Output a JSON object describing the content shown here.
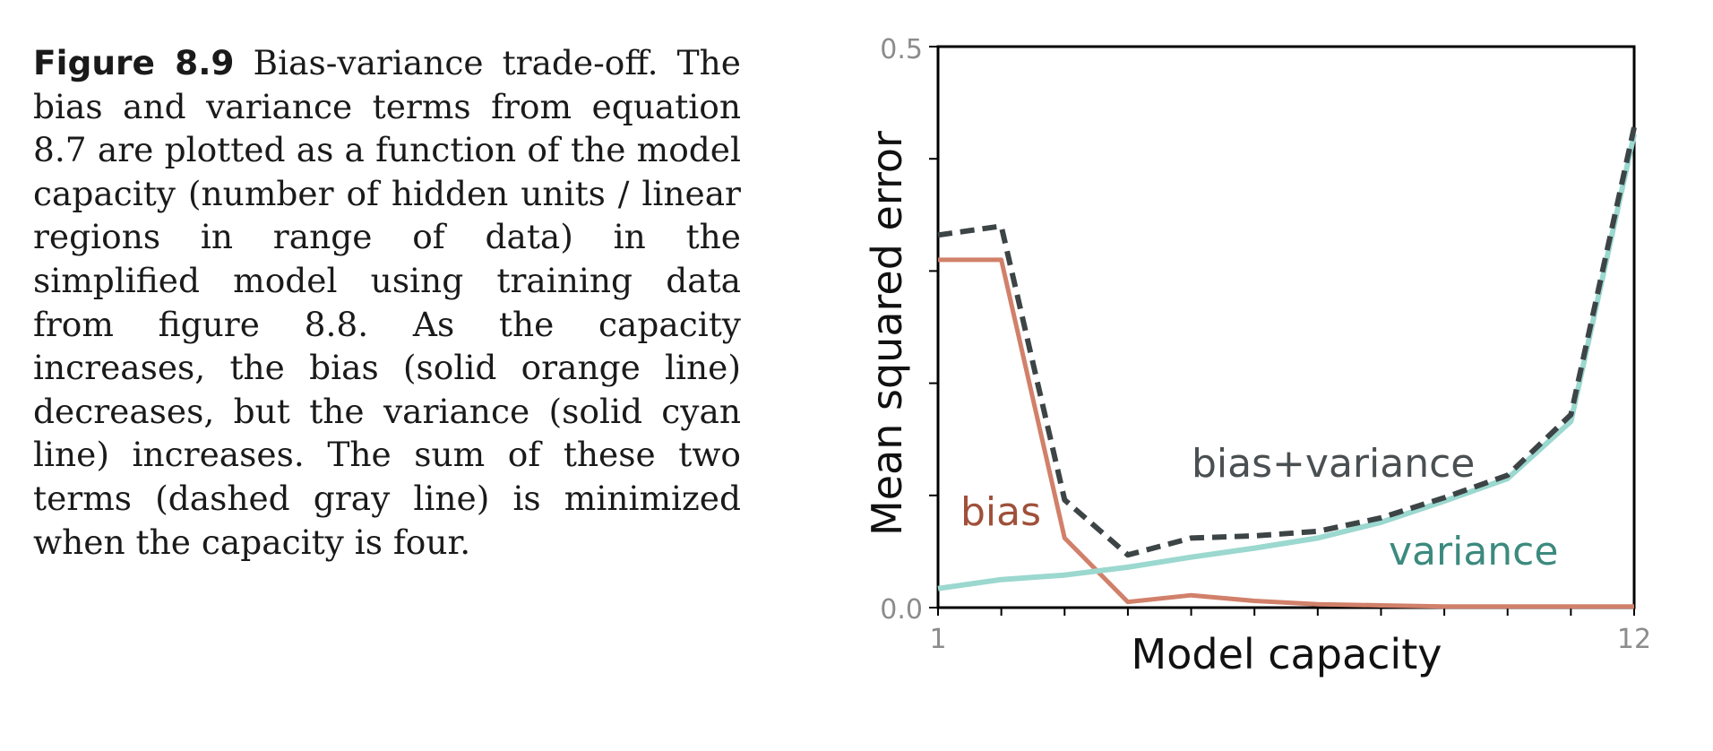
{
  "caption": {
    "label": "Figure 8.9",
    "text": " Bias-variance trade-off. The bias and variance terms from equation 8.7 are plotted as a function of the model capacity (number of hidden units / linear regions in range of data) in the simplified model using training data from figure 8.8. As the capacity increases, the bias (solid orange line) decreases, but the variance (solid cyan line) increases. The sum of these two terms (dashed gray line) is minimized when the capacity is four."
  },
  "colors": {
    "bias": "#d1806a",
    "bias_label": "#a0503a",
    "variance": "#9bd8cf",
    "variance_label": "#3c8a7e",
    "sum": "#3d4446"
  },
  "chart_data": {
    "type": "line",
    "xlabel": "Model capacity",
    "ylabel": "Mean squared error",
    "xlim": [
      1,
      12
    ],
    "ylim": [
      0.0,
      0.5
    ],
    "x_tick_labels": [
      "1",
      "12"
    ],
    "y_tick_labels": [
      "0.0",
      "0.5"
    ],
    "x": [
      1,
      2,
      3,
      4,
      5,
      6,
      7,
      8,
      9,
      10,
      11,
      12
    ],
    "series": [
      {
        "name": "bias",
        "style": "solid",
        "values": [
          0.31,
          0.31,
          0.062,
          0.005,
          0.011,
          0.006,
          0.003,
          0.002,
          0.001,
          0.001,
          0.001,
          0.001
        ]
      },
      {
        "name": "variance",
        "style": "solid",
        "values": [
          0.017,
          0.025,
          0.029,
          0.036,
          0.045,
          0.053,
          0.062,
          0.076,
          0.095,
          0.115,
          0.166,
          0.422
        ]
      },
      {
        "name": "bias+variance",
        "style": "dashed",
        "values": [
          0.332,
          0.34,
          0.096,
          0.047,
          0.062,
          0.064,
          0.068,
          0.08,
          0.098,
          0.118,
          0.172,
          0.428
        ]
      }
    ],
    "grid": false
  }
}
